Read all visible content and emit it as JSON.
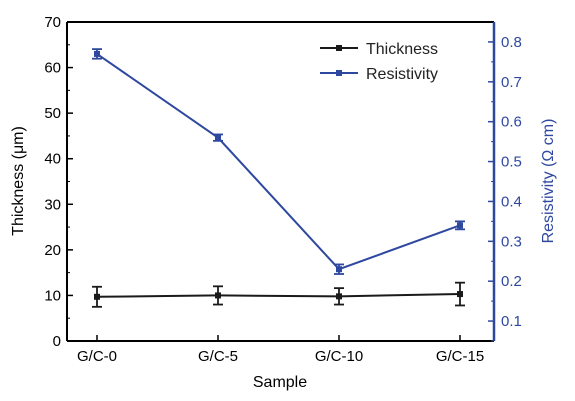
{
  "chart_data": {
    "type": "line",
    "categories": [
      "G/C-0",
      "G/C-5",
      "G/C-10",
      "G/C-15"
    ],
    "xlabel": "Sample",
    "y_left": {
      "label": "Thickness (μm)",
      "lim": [
        0,
        70
      ],
      "ticks": [
        "0",
        "10",
        "20",
        "30",
        "40",
        "50",
        "60",
        "70"
      ],
      "color": "#000000"
    },
    "y_right": {
      "label": "Resistivity (Ω cm)",
      "lim": [
        0.05,
        0.85
      ],
      "ticks": [
        "0.1",
        "0.2",
        "0.3",
        "0.4",
        "0.5",
        "0.6",
        "0.7",
        "0.8"
      ],
      "color": "#2e48a0"
    },
    "series": [
      {
        "name": "Thickness",
        "axis": "left",
        "color": "#1a1a1a",
        "values": [
          9.7,
          10.0,
          9.8,
          10.3
        ],
        "errors": [
          2.2,
          2.0,
          1.8,
          2.5
        ]
      },
      {
        "name": "Resistivity",
        "axis": "right",
        "color": "#2e48a0",
        "values": [
          0.77,
          0.56,
          0.23,
          0.34
        ],
        "errors": [
          0.012,
          0.008,
          0.012,
          0.01
        ]
      }
    ],
    "legend_position": "top-right",
    "grid": false
  }
}
